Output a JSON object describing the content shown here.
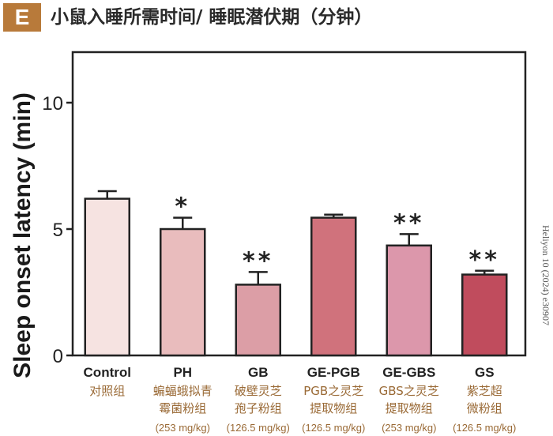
{
  "panel": {
    "label": "E",
    "title": "小鼠入睡所需时间/ 睡眠潜伏期（分钟）",
    "source_note": "Heliyon 10 (2024) e30907"
  },
  "chart_data": {
    "type": "bar",
    "title": "小鼠入睡所需时间/ 睡眠潜伏期（分钟）",
    "ylabel": "Sleep onset latency (min)",
    "xlabel": "",
    "ylim": [
      0,
      12
    ],
    "yticks": [
      0,
      5,
      10
    ],
    "grid": false,
    "legend": "none",
    "categories": [
      {
        "name": "Control",
        "cn": [
          "对照组"
        ],
        "dose": ""
      },
      {
        "name": "PH",
        "cn": [
          "蝙蝠蛾拟青",
          "霉菌粉组"
        ],
        "dose": "(253 mg/kg)"
      },
      {
        "name": "GB",
        "cn": [
          "破壁灵芝",
          "孢子粉组"
        ],
        "dose": "(126.5 mg/kg)"
      },
      {
        "name": "GE-PGB",
        "cn": [
          "PGB之灵芝",
          "提取物组"
        ],
        "dose": "(126.5 mg/kg)"
      },
      {
        "name": "GE-GBS",
        "cn": [
          "GBS之灵芝",
          "提取物组"
        ],
        "dose": "(253 mg/kg)"
      },
      {
        "name": "GS",
        "cn": [
          "紫芝超",
          "微粉组"
        ],
        "dose": "(126.5 mg/kg)"
      }
    ],
    "values": [
      6.2,
      5.0,
      2.8,
      5.45,
      4.35,
      3.2
    ],
    "errors": [
      0.3,
      0.45,
      0.5,
      0.12,
      0.45,
      0.15
    ],
    "significance": [
      "",
      "*",
      "**",
      "",
      "**",
      "**"
    ],
    "colors": [
      "#f6e3e1",
      "#e9bcbd",
      "#dc9ea6",
      "#d0727c",
      "#dc97ab",
      "#c04c5d"
    ]
  }
}
